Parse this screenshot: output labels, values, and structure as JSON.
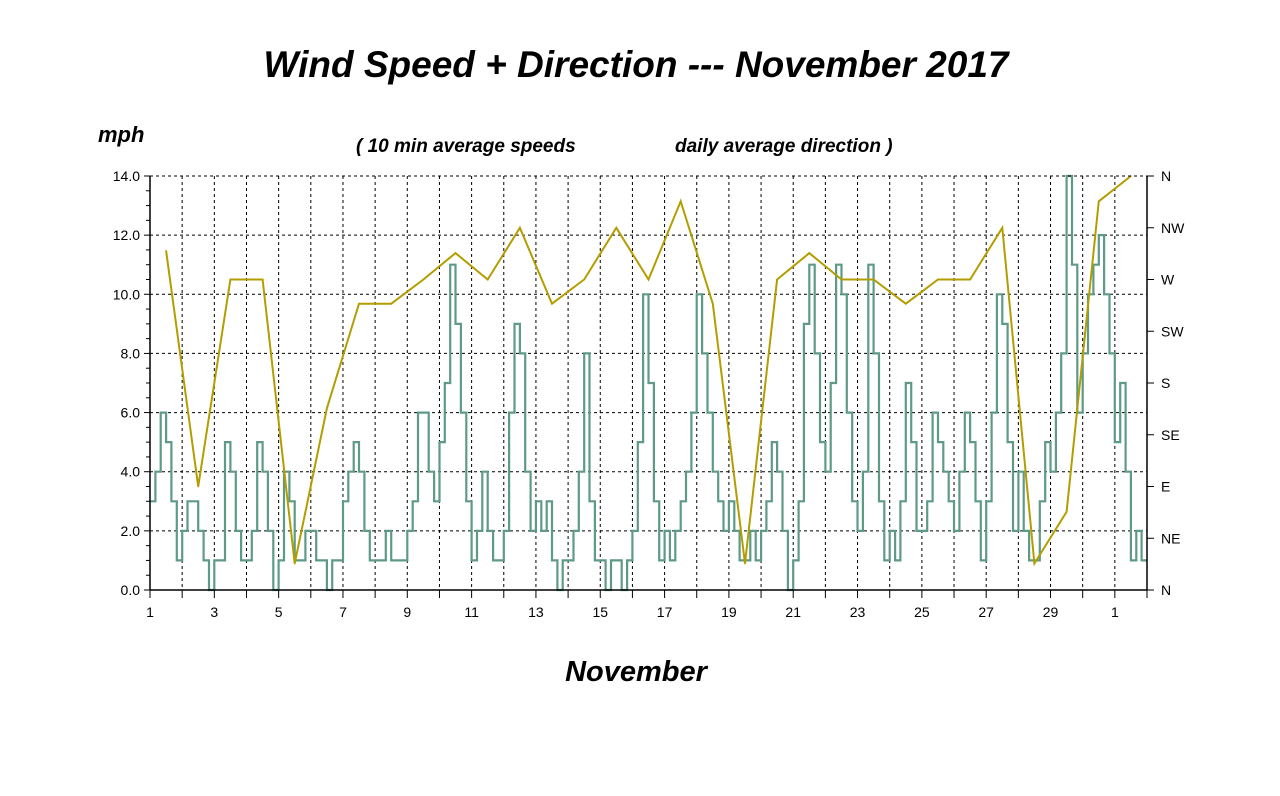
{
  "chart_data": {
    "type": "line",
    "title": "Wind Speed + Direction --- November 2017",
    "subtitle_left": "( 10 min average speeds",
    "subtitle_right": "daily average direction )",
    "ylabel": "mph",
    "xlabel": "November",
    "ylim": [
      0,
      14
    ],
    "y_ticks": [
      "0.0",
      "2.0",
      "4.0",
      "6.0",
      "8.0",
      "10.0",
      "12.0",
      "14.0"
    ],
    "y2_ticks": [
      "N",
      "NE",
      "E",
      "SE",
      "S",
      "SW",
      "W",
      "NW",
      "N"
    ],
    "y2lim_degrees": [
      0,
      360
    ],
    "xlim_days": [
      1,
      32
    ],
    "x_ticks": [
      "1",
      "3",
      "5",
      "7",
      "9",
      "11",
      "13",
      "15",
      "17",
      "19",
      "21",
      "23",
      "25",
      "27",
      "29",
      "1"
    ],
    "grid": true,
    "colors": {
      "speed": "#5e9a86",
      "direction": "#b39d00"
    },
    "series": [
      {
        "name": "10 min average speed (mph), sampled every 4 h",
        "samples_per_day": 6,
        "values": [
          3,
          4,
          6,
          5,
          3,
          1,
          2,
          3,
          3,
          2,
          1,
          0,
          1,
          1,
          5,
          4,
          2,
          1,
          1,
          2,
          5,
          4,
          2,
          0,
          1,
          4,
          3,
          1,
          1,
          2,
          2,
          1,
          1,
          0,
          1,
          1,
          3,
          4,
          5,
          4,
          2,
          1,
          1,
          1,
          2,
          1,
          1,
          1,
          2,
          3,
          6,
          6,
          4,
          3,
          5,
          7,
          11,
          9,
          6,
          3,
          1,
          2,
          4,
          2,
          1,
          1,
          2,
          6,
          9,
          8,
          4,
          2,
          3,
          2,
          3,
          1,
          0,
          1,
          1,
          2,
          4,
          8,
          3,
          1,
          1,
          0,
          1,
          1,
          0,
          1,
          2,
          5,
          10,
          7,
          3,
          1,
          2,
          1,
          2,
          3,
          4,
          6,
          10,
          8,
          6,
          4,
          3,
          2,
          3,
          2,
          1,
          1,
          2,
          1,
          2,
          3,
          5,
          4,
          2,
          0,
          1,
          3,
          9,
          11,
          8,
          5,
          4,
          7,
          11,
          10,
          6,
          3,
          2,
          4,
          11,
          8,
          3,
          1,
          2,
          1,
          3,
          7,
          5,
          2,
          2,
          3,
          6,
          5,
          4,
          3,
          2,
          4,
          6,
          5,
          3,
          1,
          3,
          6,
          10,
          9,
          5,
          2,
          4,
          2,
          1,
          1,
          3,
          5,
          4,
          6,
          8,
          14,
          11,
          6,
          8,
          10,
          11,
          12,
          10,
          8,
          5,
          7,
          4,
          1,
          2,
          1
        ]
      },
      {
        "name": "daily average direction (degrees)",
        "days": [
          "Nov 1",
          "Nov 2",
          "Nov 3",
          "Nov 4",
          "Nov 5",
          "Nov 6",
          "Nov 7",
          "Nov 8",
          "Nov 9",
          "Nov 10",
          "Nov 11",
          "Nov 12",
          "Nov 13",
          "Nov 14",
          "Nov 15",
          "Nov 16",
          "Nov 17",
          "Nov 18",
          "Nov 19",
          "Nov 20",
          "Nov 21",
          "Nov 22",
          "Nov 23",
          "Nov 24",
          "Nov 25",
          "Nov 26",
          "Nov 27",
          "Nov 28",
          "Nov 29",
          "Nov 30",
          "Dec 1"
        ],
        "values": [
          295,
          90,
          270,
          270,
          23,
          158,
          249,
          249,
          270,
          293,
          270,
          315,
          249,
          270,
          315,
          270,
          338,
          249,
          23,
          270,
          293,
          270,
          270,
          249,
          270,
          270,
          315,
          23,
          68,
          338,
          360
        ]
      }
    ]
  }
}
